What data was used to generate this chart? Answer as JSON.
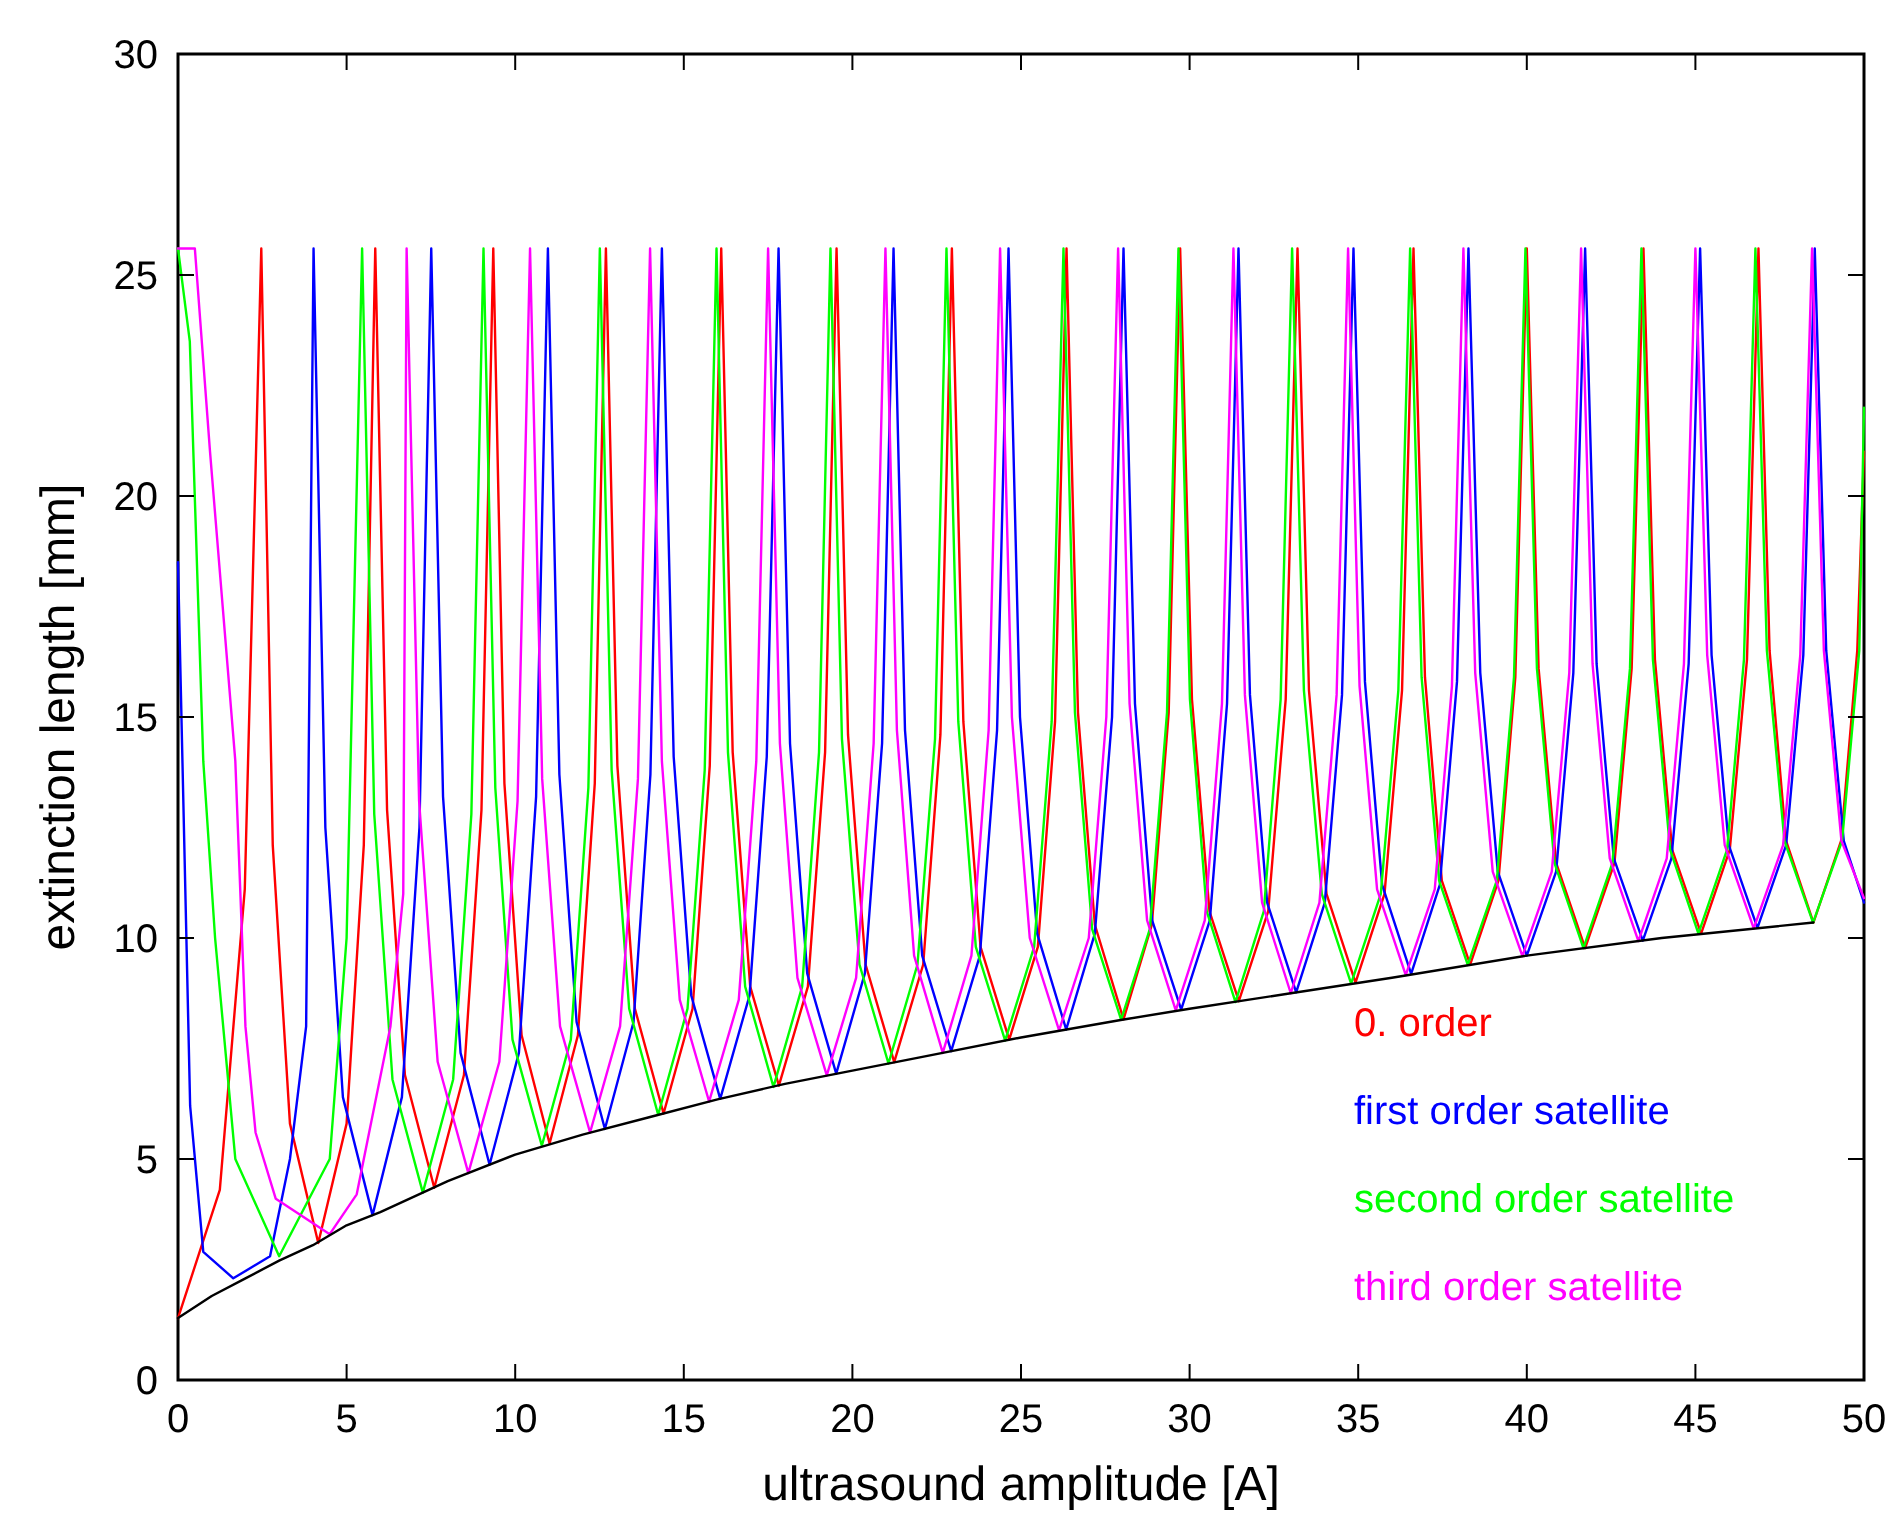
{
  "chart_data": {
    "type": "line",
    "xlabel": "ultrasound amplitude [A]",
    "ylabel": "extinction length [mm]",
    "xlim": [
      0,
      50
    ],
    "ylim": [
      0,
      30
    ],
    "xticks": [
      0,
      5,
      10,
      15,
      20,
      25,
      30,
      35,
      40,
      45,
      50
    ],
    "yticks": [
      0,
      5,
      10,
      15,
      20,
      25,
      30
    ],
    "grid": false,
    "legend": "bottom right",
    "marker": "none",
    "line_style": "solid",
    "series": [
      {
        "name": "0. order",
        "color": "#ff0000",
        "x": [
          0,
          1.24,
          1.98,
          2.47,
          2.81,
          3.32,
          4.16,
          5.0,
          5.51,
          5.85,
          6.2,
          6.73,
          7.6,
          8.48,
          9.0,
          9.35,
          9.68,
          10.19,
          11.02,
          11.86,
          12.36,
          12.69,
          13.03,
          13.55,
          14.4,
          15.26,
          15.77,
          16.11,
          16.45,
          16.97,
          17.82,
          18.68,
          19.19,
          19.53,
          19.87,
          20.39,
          21.24,
          22.1,
          22.61,
          22.95,
          23.29,
          23.8,
          24.65,
          25.5,
          26.01,
          26.35,
          26.69,
          27.19,
          28.04,
          28.88,
          29.38,
          29.72,
          30.07,
          30.59,
          31.46,
          32.33,
          32.85,
          33.2,
          33.54,
          34.06,
          34.92,
          35.78,
          36.3,
          36.64,
          36.98,
          37.48,
          38.32,
          39.16,
          39.66,
          40.0,
          40.35,
          40.87,
          41.73,
          42.6,
          43.11,
          43.46,
          43.8,
          44.31,
          45.17,
          46.02,
          46.53,
          46.87,
          47.2,
          47.69,
          48.5,
          49.32,
          49.8,
          50
        ],
        "values": [
          1.4,
          4.3,
          11.1,
          25.6,
          12.1,
          5.8,
          3.1,
          5.8,
          12.1,
          25.6,
          12.9,
          6.9,
          4.35,
          6.9,
          12.9,
          25.6,
          13.5,
          7.8,
          5.35,
          7.8,
          13.5,
          25.6,
          13.9,
          8.4,
          6.03,
          8.4,
          13.9,
          25.6,
          14.2,
          8.9,
          6.66,
          8.9,
          14.2,
          25.6,
          14.6,
          9.4,
          7.19,
          9.4,
          14.6,
          25.6,
          14.9,
          9.8,
          7.7,
          9.8,
          14.9,
          25.6,
          15.1,
          10.3,
          8.16,
          10.3,
          15.1,
          25.6,
          15.4,
          10.6,
          8.57,
          10.6,
          15.4,
          25.6,
          15.6,
          11.0,
          8.99,
          11.0,
          15.6,
          25.6,
          15.9,
          11.3,
          9.4,
          11.3,
          15.9,
          25.6,
          16.1,
          11.7,
          9.77,
          11.7,
          16.1,
          25.6,
          16.3,
          12.0,
          10.1,
          12.0,
          16.3,
          25.6,
          16.5,
          12.2,
          10.35,
          12.2,
          16.5,
          21
        ]
      },
      {
        "name": "first order satellite",
        "color": "#0000ff",
        "x": [
          0,
          0.36,
          0.75,
          1.64,
          2.73,
          3.32,
          3.8,
          4.02,
          4.37,
          4.89,
          5.77,
          6.64,
          7.16,
          7.51,
          7.86,
          8.38,
          9.24,
          10.11,
          10.62,
          10.97,
          11.31,
          11.82,
          12.66,
          13.51,
          14.01,
          14.35,
          14.7,
          15.22,
          16.08,
          16.95,
          17.46,
          17.81,
          18.15,
          18.66,
          19.52,
          20.37,
          20.88,
          21.22,
          21.56,
          22.07,
          22.93,
          23.78,
          24.29,
          24.63,
          24.97,
          25.48,
          26.34,
          27.19,
          27.7,
          28.04,
          28.38,
          28.89,
          29.75,
          30.6,
          31.11,
          31.45,
          31.79,
          32.3,
          33.16,
          34.01,
          34.52,
          34.86,
          35.2,
          35.71,
          36.57,
          37.42,
          37.93,
          38.27,
          38.62,
          39.14,
          40.0,
          40.87,
          41.38,
          41.73,
          42.07,
          42.58,
          43.44,
          44.29,
          44.8,
          45.14,
          45.48,
          45.99,
          46.84,
          47.69,
          48.2,
          48.54,
          48.88,
          49.4,
          50
        ],
        "values": [
          18.5,
          6.2,
          2.9,
          2.3,
          2.8,
          5.0,
          8.0,
          25.6,
          12.5,
          6.4,
          3.73,
          6.4,
          12.5,
          25.6,
          13.2,
          7.4,
          4.87,
          7.4,
          13.2,
          25.6,
          13.7,
          8.1,
          5.68,
          8.1,
          13.7,
          25.6,
          14.1,
          8.7,
          6.36,
          8.7,
          14.1,
          25.6,
          14.4,
          9.2,
          6.93,
          9.2,
          14.4,
          25.6,
          14.7,
          9.6,
          7.44,
          9.6,
          14.7,
          25.6,
          15.0,
          10.1,
          7.93,
          10.1,
          15.0,
          25.6,
          15.3,
          10.4,
          8.38,
          10.4,
          15.3,
          25.6,
          15.5,
          10.8,
          8.77,
          10.8,
          15.5,
          25.6,
          15.8,
          11.2,
          9.19,
          11.2,
          15.8,
          25.6,
          16.0,
          11.5,
          9.6,
          11.5,
          16.0,
          25.6,
          16.2,
          11.8,
          9.94,
          11.8,
          16.2,
          25.6,
          16.4,
          12.1,
          10.23,
          12.1,
          16.4,
          25.6,
          16.5,
          12.2,
          10.8
        ]
      },
      {
        "name": "second order satellite",
        "color": "#00ff00",
        "x": [
          0,
          0.35,
          0.75,
          1.1,
          1.7,
          3.0,
          4.5,
          5.0,
          5.46,
          5.82,
          6.36,
          7.26,
          8.16,
          8.7,
          9.06,
          9.41,
          9.92,
          10.79,
          11.65,
          12.17,
          12.51,
          12.86,
          13.38,
          14.24,
          15.11,
          15.62,
          15.97,
          16.31,
          16.82,
          17.66,
          18.51,
          19.01,
          19.35,
          19.69,
          20.21,
          21.07,
          21.93,
          22.45,
          22.79,
          23.14,
          23.66,
          24.53,
          25.39,
          25.91,
          26.26,
          26.6,
          27.11,
          27.97,
          28.82,
          29.33,
          29.67,
          30.01,
          30.51,
          31.36,
          32.2,
          32.7,
          33.04,
          33.39,
          33.92,
          34.79,
          35.67,
          36.19,
          36.54,
          36.88,
          37.4,
          38.25,
          39.11,
          39.62,
          39.96,
          40.3,
          40.82,
          41.68,
          42.54,
          43.06,
          43.4,
          43.74,
          44.25,
          45.09,
          45.94,
          46.44,
          46.78,
          47.12,
          47.64,
          48.49,
          49.35,
          49.86,
          50
        ],
        "values": [
          25.6,
          23.5,
          14,
          10,
          5,
          2.8,
          5,
          10,
          25.6,
          12.8,
          6.8,
          4.24,
          6.8,
          12.8,
          25.6,
          13.4,
          7.7,
          5.3,
          7.7,
          13.4,
          25.6,
          13.8,
          8.4,
          6.0,
          8.4,
          13.8,
          25.6,
          14.2,
          8.9,
          6.63,
          8.9,
          14.2,
          25.6,
          14.5,
          9.4,
          7.16,
          9.4,
          14.5,
          25.6,
          14.9,
          9.8,
          7.68,
          9.8,
          14.9,
          25.6,
          15.1,
          10.2,
          8.15,
          10.2,
          15.1,
          25.6,
          15.4,
          10.6,
          8.55,
          10.6,
          15.4,
          25.6,
          15.6,
          11.0,
          8.97,
          11.0,
          15.6,
          25.6,
          15.9,
          11.3,
          9.39,
          11.3,
          15.9,
          25.6,
          16.1,
          11.7,
          9.77,
          11.7,
          16.1,
          25.6,
          16.3,
          12.0,
          10.1,
          12.0,
          16.3,
          25.6,
          16.5,
          12.2,
          10.35,
          12.2,
          16.5,
          22
        ]
      },
      {
        "name": "third order satellite",
        "color": "#ff00ff",
        "x": [
          0,
          0.5,
          0.95,
          1.7,
          2.0,
          2.3,
          2.9,
          4.5,
          5.3,
          6.3,
          6.68,
          6.78,
          7.15,
          7.7,
          8.61,
          9.53,
          10.07,
          10.44,
          10.8,
          11.33,
          12.22,
          13.11,
          13.64,
          14.0,
          14.35,
          14.88,
          15.75,
          16.63,
          17.15,
          17.5,
          17.85,
          18.37,
          19.24,
          20.11,
          20.63,
          20.98,
          21.32,
          21.83,
          22.68,
          23.53,
          24.04,
          24.38,
          24.73,
          25.26,
          26.13,
          27.01,
          27.53,
          27.88,
          28.22,
          28.74,
          29.59,
          30.45,
          30.96,
          31.3,
          31.64,
          32.15,
          33.0,
          33.85,
          34.36,
          34.7,
          35.04,
          35.56,
          36.41,
          37.27,
          37.78,
          38.12,
          38.47,
          38.99,
          39.87,
          40.74,
          41.26,
          41.61,
          41.95,
          42.46,
          43.31,
          44.15,
          44.66,
          45.0,
          45.35,
          45.87,
          46.73,
          47.6,
          48.11,
          48.46,
          48.81,
          49.33,
          50
        ],
        "values": [
          25.6,
          25.6,
          21,
          14,
          8,
          5.6,
          4.1,
          3.3,
          4.2,
          8.0,
          11,
          25.6,
          13.1,
          7.2,
          4.68,
          7.2,
          13.1,
          25.6,
          13.6,
          8.0,
          5.6,
          8.0,
          13.6,
          25.6,
          14.0,
          8.6,
          6.3,
          8.6,
          14.0,
          25.6,
          14.4,
          9.1,
          6.89,
          9.1,
          14.4,
          25.6,
          14.7,
          9.6,
          7.4,
          9.6,
          14.7,
          25.6,
          15.0,
          10.0,
          7.91,
          10.0,
          15.0,
          25.6,
          15.3,
          10.4,
          8.36,
          10.4,
          15.3,
          25.6,
          15.5,
          10.8,
          8.75,
          10.8,
          15.5,
          25.6,
          15.7,
          11.1,
          9.16,
          11.1,
          15.7,
          25.6,
          16.0,
          11.5,
          9.59,
          11.5,
          16.0,
          25.6,
          16.2,
          11.8,
          9.93,
          11.8,
          16.2,
          25.6,
          16.4,
          12.1,
          10.22,
          12.1,
          16.4,
          25.6,
          16.5,
          12.2,
          10.9
        ]
      },
      {
        "color": "#000000",
        "x": [
          0,
          0.5,
          1,
          2,
          3,
          4,
          5,
          6,
          8,
          10,
          12,
          14,
          16,
          18,
          20,
          22,
          25,
          28,
          30,
          33,
          36,
          40,
          44,
          48.5
        ],
        "values": [
          1.4,
          1.65,
          1.9,
          2.3,
          2.7,
          3.05,
          3.5,
          3.8,
          4.5,
          5.1,
          5.55,
          5.95,
          6.35,
          6.7,
          7.0,
          7.3,
          7.75,
          8.15,
          8.4,
          8.75,
          9.1,
          9.6,
          10.0,
          10.35
        ]
      }
    ]
  }
}
